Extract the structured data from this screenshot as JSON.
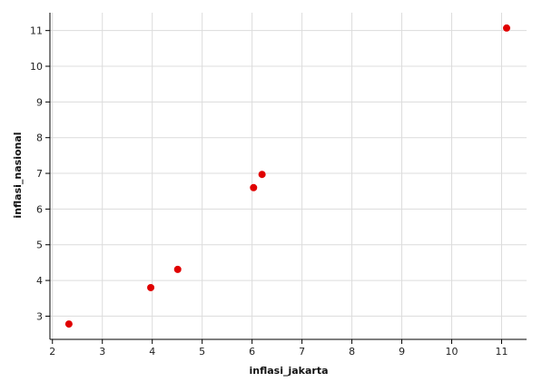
{
  "chart_data": {
    "type": "scatter",
    "xlabel": "inflasi_jakarta",
    "ylabel": "inflasi_nasional",
    "xlim": [
      1.95,
      11.5
    ],
    "ylim": [
      2.35,
      11.5
    ],
    "x_ticks": [
      "2",
      "3",
      "4",
      "5",
      "6",
      "7",
      "8",
      "9",
      "10",
      "11"
    ],
    "y_ticks": [
      "3",
      "4",
      "5",
      "6",
      "7",
      "8",
      "9",
      "10",
      "11"
    ],
    "grid": true,
    "point_color": "#e00000",
    "points": [
      {
        "x": 2.33,
        "y": 2.78
      },
      {
        "x": 3.97,
        "y": 3.8
      },
      {
        "x": 4.51,
        "y": 4.31
      },
      {
        "x": 6.03,
        "y": 6.6
      },
      {
        "x": 6.2,
        "y": 6.97
      },
      {
        "x": 11.1,
        "y": 11.07
      }
    ]
  }
}
